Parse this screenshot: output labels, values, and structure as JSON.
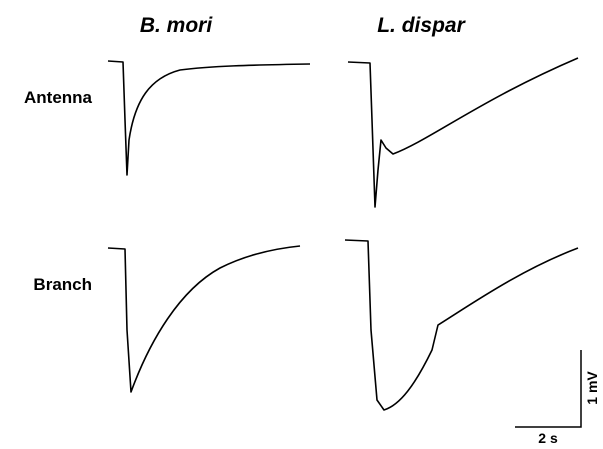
{
  "columns": [
    "B. mori",
    "L. dispar"
  ],
  "rows": [
    "Antenna",
    "Branch"
  ],
  "scale_bar": {
    "vertical": "1 mV",
    "horizontal": "2 s"
  }
}
